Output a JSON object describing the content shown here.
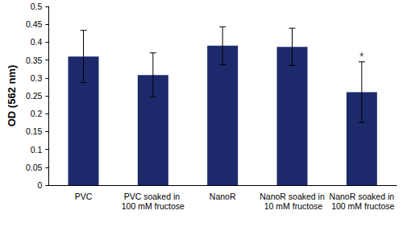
{
  "chart_data": {
    "type": "bar",
    "y_label": "OD (562 nm)",
    "categories": [
      "PVC",
      "PVC soaked in 100 mM fructose",
      "NanoR",
      "NanoR soaked in 10 mM fructose",
      "NanoR soaked in 100 mM fructose"
    ],
    "values": [
      0.36,
      0.308,
      0.39,
      0.387,
      0.26
    ],
    "errors": [
      0.073,
      0.062,
      0.053,
      0.052,
      0.085
    ],
    "color": "#1c2a6b",
    "ylim": [
      0,
      0.5
    ],
    "yticks": [
      0,
      0.05,
      0.1,
      0.15,
      0.2,
      0.25,
      0.3,
      0.35,
      0.4,
      0.45,
      0.5
    ],
    "grid": false,
    "annotations": [
      {
        "text": "*",
        "x": "NanoR soaked in 100 mM fructose",
        "y": 0.36
      }
    ]
  }
}
